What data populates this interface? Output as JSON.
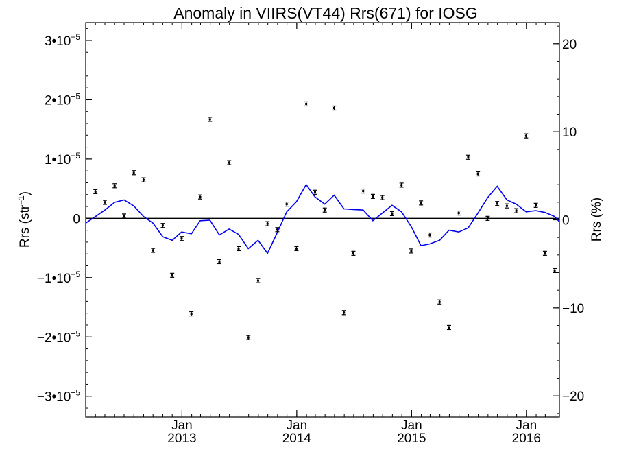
{
  "chart_data": {
    "type": "scatter",
    "title": "Anomaly in VIIRS(VT44) Rrs(671) for IOSG",
    "ylabel_left": {
      "base": "Rrs (str",
      "sup": "−1",
      "end": ")"
    },
    "ylabel_right": "Rrs (%)",
    "x_range": [
      "2012-03-01",
      "2016-04-15"
    ],
    "y_left_range": [
      -3.35e-05,
      3.3e-05
    ],
    "y_right_range": [
      -22.4,
      22.4
    ],
    "y_left_ticks": [
      {
        "value": 3e-05,
        "label": "3•10",
        "exp": "−5"
      },
      {
        "value": 2e-05,
        "label": "2•10",
        "exp": "−5"
      },
      {
        "value": 1e-05,
        "label": "1•10",
        "exp": "−5"
      },
      {
        "value": 0,
        "label": "0",
        "exp": ""
      },
      {
        "value": -1e-05,
        "label": "−1•10",
        "exp": "−5"
      },
      {
        "value": -2e-05,
        "label": "−2•10",
        "exp": "−5"
      },
      {
        "value": -3e-05,
        "label": "−3•10",
        "exp": "−5"
      }
    ],
    "y_right_ticks": [
      {
        "value": 20,
        "label": "20"
      },
      {
        "value": 10,
        "label": "10"
      },
      {
        "value": 0,
        "label": "0"
      },
      {
        "value": -10,
        "label": "−10"
      },
      {
        "value": -20,
        "label": "−20"
      }
    ],
    "x_ticks": [
      {
        "date": "2013-01-01",
        "month": "Jan",
        "year": "2013"
      },
      {
        "date": "2014-01-01",
        "month": "Jan",
        "year": "2014"
      },
      {
        "date": "2015-01-01",
        "month": "Jan",
        "year": "2015"
      },
      {
        "date": "2016-01-01",
        "month": "Jan",
        "year": "2016"
      }
    ],
    "zero_line": 0,
    "series": [
      {
        "kind": "points_with_error_bars",
        "axis": "left",
        "color": "#000000",
        "points": [
          {
            "x": "2012-04-01",
            "y": 4.5e-06
          },
          {
            "x": "2012-05-01",
            "y": 2.7e-06
          },
          {
            "x": "2012-06-01",
            "y": 5.5e-06
          },
          {
            "x": "2012-07-01",
            "y": 4e-07
          },
          {
            "x": "2012-08-01",
            "y": 7.7e-06
          },
          {
            "x": "2012-09-01",
            "y": 6.5e-06
          },
          {
            "x": "2012-10-01",
            "y": -5.4e-06
          },
          {
            "x": "2012-11-01",
            "y": -1.2e-06
          },
          {
            "x": "2012-12-01",
            "y": -9.6e-06
          },
          {
            "x": "2012-12-31",
            "y": -3.4e-06
          },
          {
            "x": "2013-01-31",
            "y": -1.61e-05
          },
          {
            "x": "2013-02-28",
            "y": 3.6e-06
          },
          {
            "x": "2013-03-31",
            "y": 1.67e-05
          },
          {
            "x": "2013-04-30",
            "y": -7.3e-06
          },
          {
            "x": "2013-05-31",
            "y": 9.4e-06
          },
          {
            "x": "2013-06-30",
            "y": -5.1e-06
          },
          {
            "x": "2013-07-31",
            "y": -2.01e-05
          },
          {
            "x": "2013-08-31",
            "y": -1.05e-05
          },
          {
            "x": "2013-09-30",
            "y": -9e-07
          },
          {
            "x": "2013-10-31",
            "y": -1.9e-06
          },
          {
            "x": "2013-11-30",
            "y": 2.4e-06
          },
          {
            "x": "2013-12-31",
            "y": -5.1e-06
          },
          {
            "x": "2014-01-31",
            "y": 1.93e-05
          },
          {
            "x": "2014-02-28",
            "y": 4.4e-06
          },
          {
            "x": "2014-03-31",
            "y": 1.4e-06
          },
          {
            "x": "2014-04-30",
            "y": 1.86e-05
          },
          {
            "x": "2014-05-31",
            "y": -1.59e-05
          },
          {
            "x": "2014-06-30",
            "y": -5.9e-06
          },
          {
            "x": "2014-07-31",
            "y": 4.6e-06
          },
          {
            "x": "2014-08-31",
            "y": 3.7e-06
          },
          {
            "x": "2014-09-30",
            "y": 3.5e-06
          },
          {
            "x": "2014-10-31",
            "y": 8e-07
          },
          {
            "x": "2014-11-30",
            "y": 5.6e-06
          },
          {
            "x": "2014-12-31",
            "y": -5.5e-06
          },
          {
            "x": "2015-01-31",
            "y": 2.6e-06
          },
          {
            "x": "2015-02-28",
            "y": -2.8e-06
          },
          {
            "x": "2015-03-31",
            "y": -1.41e-05
          },
          {
            "x": "2015-04-30",
            "y": -1.84e-05
          },
          {
            "x": "2015-05-31",
            "y": 9e-07
          },
          {
            "x": "2015-06-30",
            "y": 1.03e-05
          },
          {
            "x": "2015-07-31",
            "y": 7.5e-06
          },
          {
            "x": "2015-08-31",
            "y": 0.0
          },
          {
            "x": "2015-09-30",
            "y": 2.5e-06
          },
          {
            "x": "2015-10-31",
            "y": 2.1e-06
          },
          {
            "x": "2015-11-30",
            "y": 1.3e-06
          },
          {
            "x": "2015-12-31",
            "y": 1.39e-05
          },
          {
            "x": "2016-01-31",
            "y": 2.2e-06
          },
          {
            "x": "2016-02-29",
            "y": -5.9e-06
          },
          {
            "x": "2016-03-31",
            "y": -8.8e-06
          }
        ]
      },
      {
        "kind": "line",
        "axis": "left",
        "color": "#0000ee",
        "points": [
          {
            "x": "2012-03-01",
            "y": -8e-07
          },
          {
            "x": "2012-04-01",
            "y": 3e-07
          },
          {
            "x": "2012-05-01",
            "y": 1.4e-06
          },
          {
            "x": "2012-06-01",
            "y": 2.7e-06
          },
          {
            "x": "2012-07-01",
            "y": 3.1e-06
          },
          {
            "x": "2012-08-01",
            "y": 2.1e-06
          },
          {
            "x": "2012-09-01",
            "y": 3e-07
          },
          {
            "x": "2012-10-01",
            "y": -8e-07
          },
          {
            "x": "2012-11-01",
            "y": -3.1e-06
          },
          {
            "x": "2012-12-01",
            "y": -3.7e-06
          },
          {
            "x": "2012-12-31",
            "y": -2.3e-06
          },
          {
            "x": "2013-01-31",
            "y": -2.6e-06
          },
          {
            "x": "2013-02-28",
            "y": -4e-07
          },
          {
            "x": "2013-03-31",
            "y": -3e-07
          },
          {
            "x": "2013-04-30",
            "y": -2.8e-06
          },
          {
            "x": "2013-05-31",
            "y": -1.8e-06
          },
          {
            "x": "2013-06-30",
            "y": -2.7e-06
          },
          {
            "x": "2013-07-31",
            "y": -5.1e-06
          },
          {
            "x": "2013-08-31",
            "y": -3.7e-06
          },
          {
            "x": "2013-09-30",
            "y": -5.9e-06
          },
          {
            "x": "2013-10-31",
            "y": -2.4e-06
          },
          {
            "x": "2013-11-30",
            "y": 1.1e-06
          },
          {
            "x": "2013-12-31",
            "y": 2.8e-06
          },
          {
            "x": "2014-01-31",
            "y": 5.7e-06
          },
          {
            "x": "2014-02-28",
            "y": 3.6e-06
          },
          {
            "x": "2014-03-31",
            "y": 2.4e-06
          },
          {
            "x": "2014-04-30",
            "y": 3.9e-06
          },
          {
            "x": "2014-05-31",
            "y": 1.6e-06
          },
          {
            "x": "2014-06-30",
            "y": 1.5e-06
          },
          {
            "x": "2014-07-31",
            "y": 1.4e-06
          },
          {
            "x": "2014-08-31",
            "y": -4e-07
          },
          {
            "x": "2014-09-30",
            "y": 9e-07
          },
          {
            "x": "2014-10-31",
            "y": 2.2e-06
          },
          {
            "x": "2014-11-30",
            "y": 1.1e-06
          },
          {
            "x": "2014-12-31",
            "y": -1.4e-06
          },
          {
            "x": "2015-01-31",
            "y": -4.6e-06
          },
          {
            "x": "2015-02-28",
            "y": -4.3e-06
          },
          {
            "x": "2015-03-31",
            "y": -3.7e-06
          },
          {
            "x": "2015-04-30",
            "y": -2e-06
          },
          {
            "x": "2015-05-31",
            "y": -2.3e-06
          },
          {
            "x": "2015-06-30",
            "y": -1.6e-06
          },
          {
            "x": "2015-07-31",
            "y": 9e-07
          },
          {
            "x": "2015-08-31",
            "y": 3.5e-06
          },
          {
            "x": "2015-09-30",
            "y": 5.4e-06
          },
          {
            "x": "2015-10-31",
            "y": 3.1e-06
          },
          {
            "x": "2015-11-30",
            "y": 2.4e-06
          },
          {
            "x": "2015-12-31",
            "y": 1.1e-06
          },
          {
            "x": "2016-01-31",
            "y": 1.3e-06
          },
          {
            "x": "2016-02-29",
            "y": 1e-06
          },
          {
            "x": "2016-03-31",
            "y": 3e-07
          },
          {
            "x": "2016-04-15",
            "y": -6e-07
          }
        ]
      }
    ]
  }
}
